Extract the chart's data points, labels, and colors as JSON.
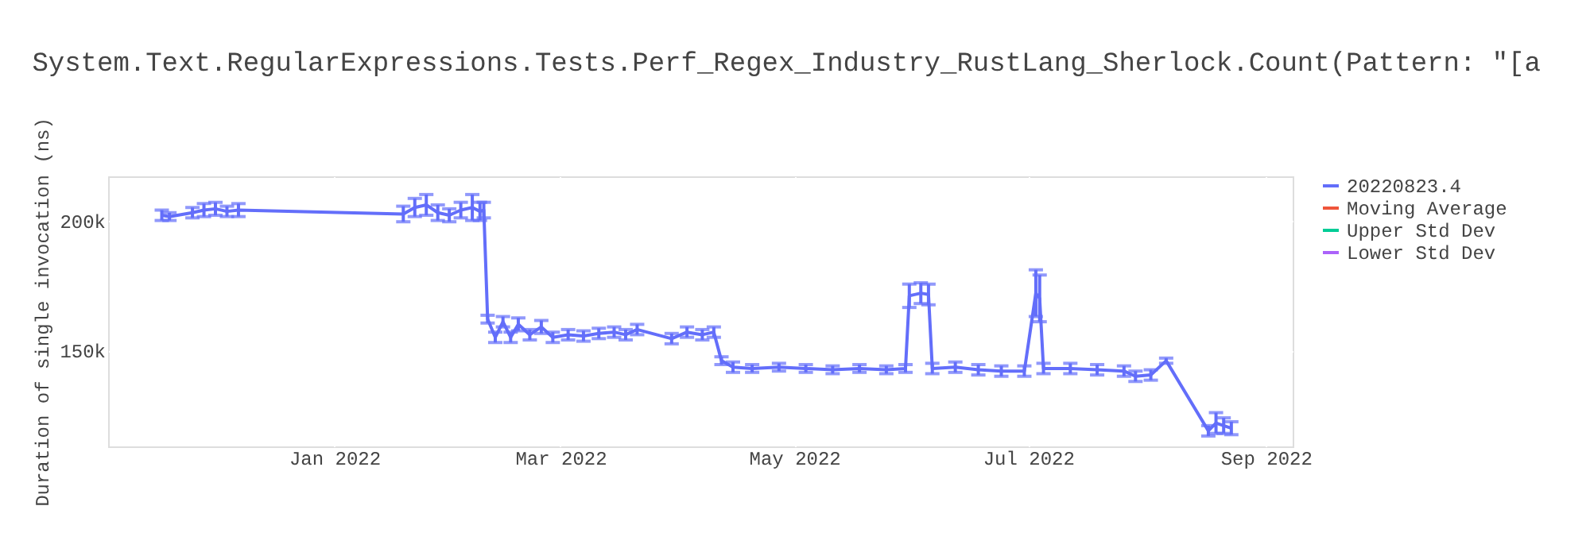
{
  "chart_data": {
    "type": "line",
    "title": "System.Text.RegularExpressions.Tests.Perf_Regex_Industry_RustLang_Sherlock.Count(Pattern: \"[a",
    "ylabel": "Duration of single invocation (ns)",
    "x": [
      "2021-11-17",
      "2021-11-19",
      "2021-11-25",
      "2021-11-28",
      "2021-12-01",
      "2021-12-04",
      "2021-12-07",
      "2022-01-19",
      "2022-01-22",
      "2022-01-25",
      "2022-01-28",
      "2022-01-31",
      "2022-02-03",
      "2022-02-06",
      "2022-02-08",
      "2022-02-09",
      "2022-02-10",
      "2022-02-12",
      "2022-02-14",
      "2022-02-16",
      "2022-02-18",
      "2022-02-21",
      "2022-02-24",
      "2022-02-27",
      "2022-03-03",
      "2022-03-07",
      "2022-03-11",
      "2022-03-15",
      "2022-03-18",
      "2022-03-21",
      "2022-03-30",
      "2022-04-03",
      "2022-04-07",
      "2022-04-10",
      "2022-04-12",
      "2022-04-15",
      "2022-04-20",
      "2022-04-27",
      "2022-05-04",
      "2022-05-11",
      "2022-05-18",
      "2022-05-25",
      "2022-05-30",
      "2022-05-31",
      "2022-06-03",
      "2022-06-05",
      "2022-06-06",
      "2022-06-12",
      "2022-06-18",
      "2022-06-24",
      "2022-06-30",
      "2022-07-03",
      "2022-07-04",
      "2022-07-05",
      "2022-07-12",
      "2022-07-19",
      "2022-07-26",
      "2022-07-29",
      "2022-08-02",
      "2022-08-06",
      "2022-08-17",
      "2022-08-19",
      "2022-08-21",
      "2022-08-23"
    ],
    "series": [
      {
        "name": "20220823.4",
        "color": "#636efa",
        "values": [
          202000,
          201500,
          203000,
          204000,
          204500,
          203500,
          204000,
          202500,
          205000,
          206000,
          203000,
          202000,
          204000,
          205000,
          203500,
          204000,
          162000,
          155000,
          161000,
          155000,
          160000,
          156000,
          159000,
          155000,
          156000,
          155500,
          156500,
          157000,
          156000,
          158000,
          154500,
          157000,
          156000,
          157000,
          146000,
          143500,
          143000,
          143500,
          143000,
          142500,
          143000,
          142500,
          143000,
          171000,
          172000,
          171500,
          143000,
          143500,
          142500,
          142000,
          142000,
          172000,
          170000,
          143000,
          143000,
          142500,
          142000,
          140000,
          140500,
          146000,
          119000,
          122000,
          121000,
          120000
        ],
        "errors": [
          2000,
          1500,
          2000,
          2500,
          2500,
          2000,
          2500,
          3000,
          3500,
          4000,
          3000,
          2500,
          3000,
          5000,
          3500,
          3000,
          1500,
          2000,
          2000,
          2000,
          2500,
          2000,
          2500,
          2000,
          2000,
          2000,
          2000,
          2000,
          2000,
          2000,
          2000,
          2000,
          2000,
          2000,
          1500,
          2000,
          1500,
          1500,
          1500,
          1500,
          1500,
          1500,
          1500,
          4500,
          4000,
          4000,
          2000,
          2000,
          2000,
          2000,
          2000,
          9000,
          9000,
          2000,
          2000,
          2000,
          2000,
          2000,
          2000,
          1000,
          2000,
          4000,
          3000,
          2500
        ]
      },
      {
        "name": "Moving Average",
        "color": "#ef553b",
        "values": [
          null,
          null,
          null,
          null,
          null,
          null,
          null,
          null,
          null,
          null,
          null,
          null,
          null,
          null,
          null,
          null,
          null,
          null,
          null,
          null,
          null,
          null,
          null,
          null,
          null,
          null,
          null,
          null,
          null,
          null,
          null,
          null,
          null,
          null,
          null,
          null,
          null,
          null,
          null,
          null,
          null,
          null,
          null,
          null,
          null,
          null,
          null,
          null,
          null,
          null,
          null,
          null,
          null,
          null,
          null,
          null,
          null,
          null,
          null,
          null,
          null,
          null,
          null,
          null
        ]
      },
      {
        "name": "Upper Std Dev",
        "color": "#00cc96",
        "values": [
          null,
          null,
          null,
          null,
          null,
          null,
          null,
          null,
          null,
          null,
          null,
          null,
          null,
          null,
          null,
          null,
          null,
          null,
          null,
          null,
          null,
          null,
          null,
          null,
          null,
          null,
          null,
          null,
          null,
          null,
          null,
          null,
          null,
          null,
          null,
          null,
          null,
          null,
          null,
          null,
          null,
          null,
          null,
          null,
          null,
          null,
          null,
          null,
          null,
          null,
          null,
          null,
          null,
          null,
          null,
          null,
          null,
          null,
          null,
          null,
          null,
          null,
          null,
          null
        ]
      },
      {
        "name": "Lower Std Dev",
        "color": "#ab63fa",
        "values": [
          null,
          null,
          null,
          null,
          null,
          null,
          null,
          null,
          null,
          null,
          null,
          null,
          null,
          null,
          null,
          null,
          null,
          null,
          null,
          null,
          null,
          null,
          null,
          null,
          null,
          null,
          null,
          null,
          null,
          null,
          null,
          null,
          null,
          null,
          null,
          null,
          null,
          null,
          null,
          null,
          null,
          null,
          null,
          null,
          null,
          null,
          null,
          null,
          null,
          null,
          null,
          null,
          null,
          null,
          null,
          null,
          null,
          null,
          null,
          null,
          null,
          null,
          null,
          null
        ]
      }
    ],
    "xlim": [
      "2021-11-03",
      "2022-09-08"
    ],
    "xticks": [
      {
        "value": "2022-01-01",
        "label": "Jan 2022"
      },
      {
        "value": "2022-03-01",
        "label": "Mar 2022"
      },
      {
        "value": "2022-05-01",
        "label": "May 2022"
      },
      {
        "value": "2022-07-01",
        "label": "Jul 2022"
      },
      {
        "value": "2022-09-01",
        "label": "Sep 2022"
      }
    ],
    "ylim": [
      113000,
      217000
    ],
    "yticks": [
      {
        "value": 150000,
        "label": "150k"
      },
      {
        "value": 200000,
        "label": "200k"
      }
    ],
    "grid": true,
    "legend": "top right",
    "line_style": "solid",
    "marker": "none"
  }
}
